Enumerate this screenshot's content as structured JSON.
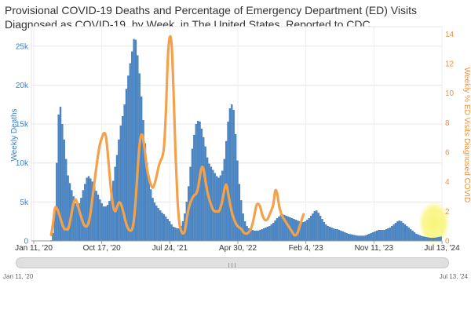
{
  "title": "Provisional COVID-19 Deaths and Percentage of Emergency Department (ED) Visits Diagnosed as COVID-19, by Week, in The United States, Reported to CDC",
  "colors": {
    "bars": "#4a86c5",
    "bar_edge": "#2f6aa8",
    "line": "#f4a24a",
    "highlight": "#f7f46a",
    "left_axis": "#3b7fc4",
    "right_axis": "#f0913a"
  },
  "navigator": {
    "start_label": "Jan 11, '20",
    "end_label": "Jul 13, '24"
  },
  "chart_data": {
    "type": "bar+line",
    "title": "Provisional COVID-19 Deaths and Percentage of Emergency Department (ED) Visits Diagnosed as COVID-19, by Week, in The United States, Reported to CDC",
    "xlabel": "",
    "x_ticks": [
      "Jan 11, '20",
      "Oct 17, '20",
      "Jul 24, '21",
      "Apr 30, '22",
      "Feb 4, '23",
      "Nov 11, '23",
      "Jul 13, '24"
    ],
    "y_left": {
      "label": "Weekly Deaths",
      "ylim": [
        0,
        27500
      ],
      "ticks": [
        "0",
        "5k",
        "10k",
        "15k",
        "20k",
        "25k"
      ]
    },
    "y_right": {
      "label": "Weekly % ED Visits Diagnosed COVID",
      "ylim": [
        0,
        14.5
      ],
      "ticks": [
        "0",
        "2",
        "4",
        "6",
        "8",
        "10",
        "12",
        "14"
      ]
    },
    "series": [
      {
        "name": "Weekly Deaths",
        "kind": "bar",
        "axis": "left",
        "values": [
          0,
          0,
          0,
          0,
          0,
          0,
          0,
          0,
          0,
          0,
          60,
          1000,
          4000,
          10000,
          16200,
          17200,
          15000,
          13000,
          10500,
          8400,
          7400,
          6500,
          5700,
          4800,
          4400,
          4800,
          5500,
          6500,
          7300,
          8100,
          8300,
          8000,
          7600,
          7000,
          6400,
          5900,
          5300,
          4800,
          4400,
          4400,
          4600,
          5100,
          6200,
          7700,
          9500,
          11000,
          13000,
          14800,
          16000,
          17500,
          19500,
          21200,
          22800,
          24300,
          25900,
          25800,
          23800,
          21500,
          18500,
          15500,
          12500,
          10000,
          8000,
          6600,
          5500,
          4900,
          4500,
          4200,
          3900,
          3600,
          3400,
          3100,
          2800,
          2500,
          2100,
          1800,
          1700,
          1600,
          1600,
          1900,
          2500,
          3500,
          5000,
          7000,
          9500,
          11800,
          13600,
          15000,
          15400,
          15300,
          14400,
          13300,
          12100,
          10700,
          9900,
          9500,
          9100,
          8700,
          8300,
          8100,
          8400,
          9000,
          10500,
          12800,
          15300,
          17000,
          17500,
          16800,
          13700,
          10300,
          7300,
          5200,
          3500,
          2500,
          1900,
          1600,
          1400,
          1400,
          1300,
          1300,
          1300,
          1400,
          1500,
          1600,
          1700,
          1800,
          1900,
          2100,
          2300,
          2600,
          2900,
          3100,
          3300,
          3400,
          3300,
          3200,
          3100,
          3000,
          2900,
          2800,
          2700,
          2600,
          2500,
          2400,
          2400,
          2500,
          2700,
          2900,
          3200,
          3500,
          3800,
          3900,
          3600,
          3200,
          2800,
          2400,
          2100,
          1900,
          1800,
          1700,
          1600,
          1500,
          1500,
          1400,
          1300,
          1200,
          1100,
          1000,
          900,
          850,
          800,
          750,
          700,
          650,
          650,
          650,
          650,
          700,
          800,
          900,
          1000,
          1100,
          1200,
          1300,
          1400,
          1400,
          1400,
          1400,
          1500,
          1600,
          1700,
          1900,
          2100,
          2300,
          2500,
          2600,
          2500,
          2300,
          2100,
          1900,
          1700,
          1500,
          1300,
          1100,
          900,
          800,
          700,
          600,
          550,
          500,
          450,
          400,
          380,
          380,
          400,
          450,
          500,
          550
        ]
      },
      {
        "name": "Weekly % ED Visits Diagnosed COVID",
        "kind": "line",
        "axis": "right",
        "points": [
          [
            10,
            0.4
          ],
          [
            11,
            1.2
          ],
          [
            12,
            2.2
          ],
          [
            13,
            2.2
          ],
          [
            14,
            1.9
          ],
          [
            15,
            1.5
          ],
          [
            16,
            1.1
          ],
          [
            17,
            0.8
          ],
          [
            18,
            0.8
          ],
          [
            19,
            0.8
          ],
          [
            20,
            1.3
          ],
          [
            21,
            2.0
          ],
          [
            22,
            2.6
          ],
          [
            23,
            2.8
          ],
          [
            24,
            2.5
          ],
          [
            25,
            2.0
          ],
          [
            26,
            1.6
          ],
          [
            27,
            1.2
          ],
          [
            28,
            1.0
          ],
          [
            29,
            1.0
          ],
          [
            30,
            1.3
          ],
          [
            31,
            2.0
          ],
          [
            32,
            3.0
          ],
          [
            33,
            4.0
          ],
          [
            34,
            5.0
          ],
          [
            35,
            5.9
          ],
          [
            36,
            6.6
          ],
          [
            37,
            7.0
          ],
          [
            38,
            7.3
          ],
          [
            39,
            7.1
          ],
          [
            40,
            6.0
          ],
          [
            41,
            4.5
          ],
          [
            42,
            3.2
          ],
          [
            43,
            2.3
          ],
          [
            44,
            2.0
          ],
          [
            45,
            2.3
          ],
          [
            46,
            2.6
          ],
          [
            47,
            2.5
          ],
          [
            48,
            2.1
          ],
          [
            49,
            1.6
          ],
          [
            50,
            1.1
          ],
          [
            51,
            0.8
          ],
          [
            52,
            0.7
          ],
          [
            53,
            0.8
          ],
          [
            54,
            1.5
          ],
          [
            55,
            3.0
          ],
          [
            56,
            5.0
          ],
          [
            57,
            6.6
          ],
          [
            58,
            7.2
          ],
          [
            59,
            6.8
          ],
          [
            60,
            5.8
          ],
          [
            61,
            4.8
          ],
          [
            62,
            4.2
          ],
          [
            63,
            3.8
          ],
          [
            64,
            3.6
          ],
          [
            65,
            3.9
          ],
          [
            66,
            4.4
          ],
          [
            67,
            5.0
          ],
          [
            68,
            5.4
          ],
          [
            69,
            5.7
          ],
          [
            70,
            6.5
          ],
          [
            71,
            9.0
          ],
          [
            72,
            12.5
          ],
          [
            73,
            13.8
          ],
          [
            74,
            13.2
          ],
          [
            75,
            10.0
          ],
          [
            76,
            6.0
          ],
          [
            77,
            3.0
          ],
          [
            78,
            1.3
          ],
          [
            79,
            0.7
          ],
          [
            80,
            0.5
          ],
          [
            81,
            0.7
          ],
          [
            82,
            1.5
          ],
          [
            83,
            2.2
          ],
          [
            84,
            2.6
          ],
          [
            85,
            2.9
          ],
          [
            86,
            3.1
          ],
          [
            87,
            3.2
          ],
          [
            88,
            3.6
          ],
          [
            89,
            4.4
          ],
          [
            90,
            5.0
          ],
          [
            91,
            4.8
          ],
          [
            92,
            4.0
          ],
          [
            93,
            3.3
          ],
          [
            94,
            2.8
          ],
          [
            95,
            2.4
          ],
          [
            96,
            2.1
          ],
          [
            97,
            2.0
          ],
          [
            98,
            2.0
          ],
          [
            99,
            2.0
          ],
          [
            100,
            2.3
          ],
          [
            101,
            2.8
          ],
          [
            102,
            3.5
          ],
          [
            103,
            3.8
          ],
          [
            104,
            3.2
          ],
          [
            105,
            2.5
          ],
          [
            106,
            1.9
          ],
          [
            107,
            1.5
          ],
          [
            108,
            1.2
          ],
          [
            109,
            1.0
          ],
          [
            110,
            0.9
          ],
          [
            111,
            0.8
          ],
          [
            112,
            0.6
          ],
          [
            113,
            0.5
          ],
          [
            114,
            0.5
          ],
          [
            115,
            0.6
          ],
          [
            116,
            0.8
          ],
          [
            117,
            1.2
          ],
          [
            118,
            1.8
          ],
          [
            119,
            2.4
          ],
          [
            120,
            2.5
          ],
          [
            121,
            2.3
          ],
          [
            122,
            1.8
          ],
          [
            123,
            1.5
          ],
          [
            124,
            1.4
          ],
          [
            125,
            1.5
          ],
          [
            126,
            1.8
          ],
          [
            127,
            2.1
          ],
          [
            128,
            2.5
          ],
          [
            129,
            3.4
          ],
          [
            130,
            3.2
          ],
          [
            131,
            2.4
          ],
          [
            132,
            1.9
          ],
          [
            133,
            1.6
          ],
          [
            134,
            1.4
          ],
          [
            135,
            1.2
          ],
          [
            136,
            1.0
          ],
          [
            137,
            0.8
          ],
          [
            138,
            0.6
          ],
          [
            139,
            0.4
          ],
          [
            140,
            0.4
          ],
          [
            141,
            0.6
          ],
          [
            142,
            1.0
          ],
          [
            143,
            1.4
          ],
          [
            144,
            1.8
          ]
        ]
      }
    ],
    "grid": {
      "y": true,
      "x": true
    },
    "highlight": "yellow halo on the most recent weeks near Jul 13, '24",
    "legend": "none"
  }
}
